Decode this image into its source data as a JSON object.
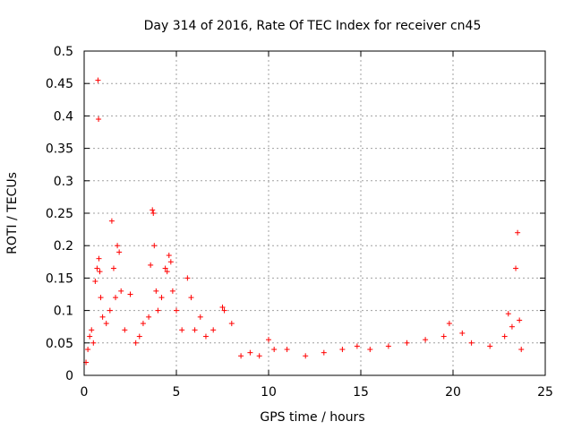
{
  "chart_data": {
    "type": "scatter",
    "title": "Day 314 of 2016, Rate Of TEC Index for receiver cn45",
    "xlabel": "GPS time / hours",
    "ylabel": "ROTI / TECUs",
    "xlim": [
      0,
      25
    ],
    "ylim": [
      0,
      0.5
    ],
    "xticks": [
      0,
      5,
      10,
      15,
      20,
      25
    ],
    "yticks": [
      0,
      0.05,
      0.1,
      0.15,
      0.2,
      0.25,
      0.3,
      0.35,
      0.4,
      0.45,
      0.5
    ],
    "grid": true,
    "marker": "+",
    "color": "#ff0000",
    "series": [
      {
        "name": "ROTI",
        "points": [
          [
            0.1,
            0.02
          ],
          [
            0.2,
            0.04
          ],
          [
            0.3,
            0.06
          ],
          [
            0.4,
            0.07
          ],
          [
            0.5,
            0.05
          ],
          [
            0.6,
            0.145
          ],
          [
            0.7,
            0.165
          ],
          [
            0.75,
            0.455
          ],
          [
            0.78,
            0.395
          ],
          [
            0.8,
            0.18
          ],
          [
            0.85,
            0.16
          ],
          [
            0.9,
            0.12
          ],
          [
            1.0,
            0.09
          ],
          [
            1.2,
            0.08
          ],
          [
            1.4,
            0.1
          ],
          [
            1.5,
            0.238
          ],
          [
            1.6,
            0.165
          ],
          [
            1.7,
            0.12
          ],
          [
            1.8,
            0.2
          ],
          [
            1.9,
            0.19
          ],
          [
            2.0,
            0.13
          ],
          [
            2.2,
            0.07
          ],
          [
            2.5,
            0.125
          ],
          [
            2.8,
            0.05
          ],
          [
            3.0,
            0.06
          ],
          [
            3.2,
            0.08
          ],
          [
            3.5,
            0.09
          ],
          [
            3.6,
            0.17
          ],
          [
            3.7,
            0.255
          ],
          [
            3.75,
            0.25
          ],
          [
            3.8,
            0.2
          ],
          [
            3.9,
            0.13
          ],
          [
            4.0,
            0.1
          ],
          [
            4.2,
            0.12
          ],
          [
            4.4,
            0.165
          ],
          [
            4.5,
            0.16
          ],
          [
            4.6,
            0.185
          ],
          [
            4.7,
            0.175
          ],
          [
            4.8,
            0.13
          ],
          [
            5.0,
            0.1
          ],
          [
            5.3,
            0.07
          ],
          [
            5.6,
            0.15
          ],
          [
            5.8,
            0.12
          ],
          [
            6.0,
            0.07
          ],
          [
            6.3,
            0.09
          ],
          [
            6.6,
            0.06
          ],
          [
            7.0,
            0.07
          ],
          [
            7.5,
            0.105
          ],
          [
            7.6,
            0.1
          ],
          [
            8.0,
            0.08
          ],
          [
            8.5,
            0.03
          ],
          [
            9.0,
            0.035
          ],
          [
            9.5,
            0.03
          ],
          [
            10.0,
            0.055
          ],
          [
            10.3,
            0.04
          ],
          [
            11.0,
            0.04
          ],
          [
            12.0,
            0.03
          ],
          [
            13.0,
            0.035
          ],
          [
            14.0,
            0.04
          ],
          [
            14.8,
            0.045
          ],
          [
            15.5,
            0.04
          ],
          [
            16.5,
            0.045
          ],
          [
            17.5,
            0.05
          ],
          [
            18.5,
            0.055
          ],
          [
            19.5,
            0.06
          ],
          [
            19.8,
            0.08
          ],
          [
            20.5,
            0.065
          ],
          [
            21.0,
            0.05
          ],
          [
            22.0,
            0.045
          ],
          [
            22.8,
            0.06
          ],
          [
            23.0,
            0.095
          ],
          [
            23.2,
            0.075
          ],
          [
            23.4,
            0.165
          ],
          [
            23.5,
            0.22
          ],
          [
            23.6,
            0.085
          ],
          [
            23.7,
            0.04
          ]
        ]
      }
    ]
  }
}
